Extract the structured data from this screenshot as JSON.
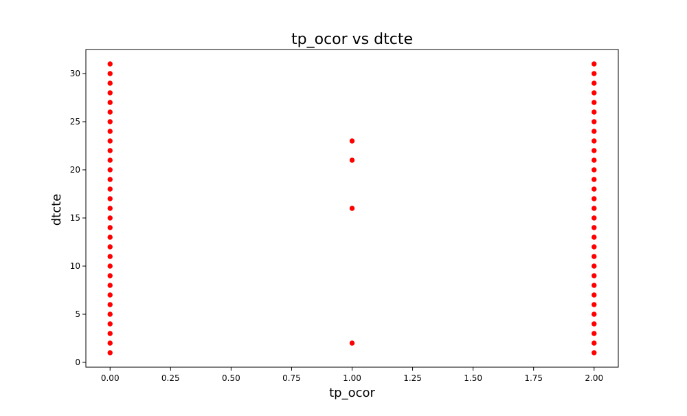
{
  "chart_data": {
    "type": "scatter",
    "title": "tp_ocor vs dtcte",
    "xlabel": "tp_ocor",
    "ylabel": "dtcte",
    "xlim": [
      -0.1,
      2.1
    ],
    "ylim": [
      -0.5,
      32.5
    ],
    "xticks": [
      0.0,
      0.25,
      0.5,
      0.75,
      1.0,
      1.25,
      1.5,
      1.75,
      2.0
    ],
    "xtick_labels": [
      "0.00",
      "0.25",
      "0.50",
      "0.75",
      "1.00",
      "1.25",
      "1.50",
      "1.75",
      "2.00"
    ],
    "yticks": [
      0,
      5,
      10,
      15,
      20,
      25,
      30
    ],
    "ytick_labels": [
      "0",
      "5",
      "10",
      "15",
      "20",
      "25",
      "30"
    ],
    "grid": false,
    "marker_color": "#ff0000",
    "points": [
      [
        0,
        1
      ],
      [
        0,
        2
      ],
      [
        0,
        3
      ],
      [
        0,
        4
      ],
      [
        0,
        5
      ],
      [
        0,
        6
      ],
      [
        0,
        7
      ],
      [
        0,
        8
      ],
      [
        0,
        9
      ],
      [
        0,
        10
      ],
      [
        0,
        11
      ],
      [
        0,
        12
      ],
      [
        0,
        13
      ],
      [
        0,
        14
      ],
      [
        0,
        15
      ],
      [
        0,
        16
      ],
      [
        0,
        17
      ],
      [
        0,
        18
      ],
      [
        0,
        19
      ],
      [
        0,
        20
      ],
      [
        0,
        21
      ],
      [
        0,
        22
      ],
      [
        0,
        23
      ],
      [
        0,
        24
      ],
      [
        0,
        25
      ],
      [
        0,
        26
      ],
      [
        0,
        27
      ],
      [
        0,
        28
      ],
      [
        0,
        29
      ],
      [
        0,
        30
      ],
      [
        0,
        31
      ],
      [
        1,
        2
      ],
      [
        1,
        16
      ],
      [
        1,
        21
      ],
      [
        1,
        23
      ],
      [
        2,
        1
      ],
      [
        2,
        2
      ],
      [
        2,
        3
      ],
      [
        2,
        4
      ],
      [
        2,
        5
      ],
      [
        2,
        6
      ],
      [
        2,
        7
      ],
      [
        2,
        8
      ],
      [
        2,
        9
      ],
      [
        2,
        10
      ],
      [
        2,
        11
      ],
      [
        2,
        12
      ],
      [
        2,
        13
      ],
      [
        2,
        14
      ],
      [
        2,
        15
      ],
      [
        2,
        16
      ],
      [
        2,
        17
      ],
      [
        2,
        18
      ],
      [
        2,
        19
      ],
      [
        2,
        20
      ],
      [
        2,
        21
      ],
      [
        2,
        22
      ],
      [
        2,
        23
      ],
      [
        2,
        24
      ],
      [
        2,
        25
      ],
      [
        2,
        26
      ],
      [
        2,
        27
      ],
      [
        2,
        28
      ],
      [
        2,
        29
      ],
      [
        2,
        30
      ],
      [
        2,
        31
      ]
    ]
  }
}
